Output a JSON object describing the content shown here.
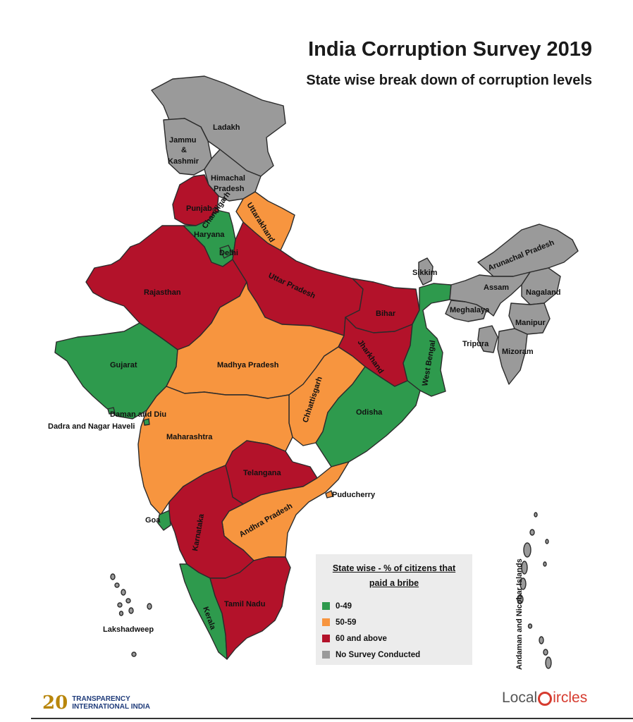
{
  "title": "India Corruption Survey 2019",
  "subtitle": "State wise break down of corruption levels",
  "colors": {
    "low": "#2e9a4d",
    "medium": "#f7953f",
    "high": "#b3122a",
    "none": "#9a9a9a"
  },
  "legend": {
    "title_line1": "State wise - % of citizens that",
    "title_line2": "paid a bribe",
    "items": [
      {
        "label": "0-49",
        "category": "low"
      },
      {
        "label": "50-59",
        "category": "medium"
      },
      {
        "label": "60 and above",
        "category": "high"
      },
      {
        "label": "No Survey Conducted",
        "category": "none"
      }
    ]
  },
  "regions": {
    "ladakh": {
      "name": "Ladakh",
      "category": "none"
    },
    "jammu_kashmir": {
      "name_lines": [
        "Jammu",
        "&",
        "Kashmir"
      ],
      "category": "none"
    },
    "himachal": {
      "name_lines": [
        "Himachal",
        "Pradesh"
      ],
      "category": "none"
    },
    "punjab": {
      "name": "Punjab",
      "category": "high"
    },
    "chandigarh": {
      "name": "Chandigarh",
      "category": "high"
    },
    "uttarakhand": {
      "name": "Uttarakhand",
      "category": "medium"
    },
    "haryana": {
      "name": "Haryana",
      "category": "low"
    },
    "delhi": {
      "name": "Delhi",
      "category": "low"
    },
    "rajasthan": {
      "name": "Rajasthan",
      "category": "high"
    },
    "uttar_pradesh": {
      "name": "Uttar Pradesh",
      "category": "high"
    },
    "bihar": {
      "name": "Bihar",
      "category": "high"
    },
    "sikkim": {
      "name": "Sikkim",
      "category": "none"
    },
    "arunachal": {
      "name": "Arunachal Pradesh",
      "category": "none"
    },
    "assam": {
      "name": "Assam",
      "category": "none"
    },
    "nagaland": {
      "name": "Nagaland",
      "category": "none"
    },
    "meghalaya": {
      "name": "Meghalaya",
      "category": "none"
    },
    "manipur": {
      "name": "Manipur",
      "category": "none"
    },
    "tripura": {
      "name": "Tripura",
      "category": "none"
    },
    "mizoram": {
      "name": "Mizoram",
      "category": "none"
    },
    "gujarat": {
      "name": "Gujarat",
      "category": "low"
    },
    "madhya_pradesh": {
      "name": "Madhya Pradesh",
      "category": "medium"
    },
    "jharkhand": {
      "name": "Jharkhand",
      "category": "high"
    },
    "west_bengal": {
      "name": "West Bengal",
      "category": "low"
    },
    "chhattisgarh": {
      "name": "Chhattisgarh",
      "category": "medium"
    },
    "odisha": {
      "name": "Odisha",
      "category": "low"
    },
    "daman_diu": {
      "name": "Daman and Diu",
      "category": "low"
    },
    "dadra_nagar_haveli": {
      "name": "Dadra and Nagar Haveli",
      "category": "low"
    },
    "maharashtra": {
      "name": "Maharashtra",
      "category": "medium"
    },
    "telangana": {
      "name": "Telangana",
      "category": "high"
    },
    "puducherry": {
      "name": "Puducherry",
      "category": "medium"
    },
    "goa": {
      "name": "Goa",
      "category": "low"
    },
    "karnataka": {
      "name": "Karnataka",
      "category": "high"
    },
    "andhra_pradesh": {
      "name": "Andhra Pradesh",
      "category": "medium"
    },
    "tamil_nadu": {
      "name": "Tamil Nadu",
      "category": "high"
    },
    "kerala": {
      "name": "Kerala",
      "category": "low"
    },
    "lakshadweep": {
      "name": "Lakshadweep",
      "category": "none"
    },
    "andaman_nicobar": {
      "name": "Andaman and Nicobar Islands",
      "category": "none"
    }
  },
  "logos": {
    "left_number": "20",
    "left_line1": "TRANSPARENCY",
    "left_line2": "INTERNATIONAL INDIA",
    "right_pre": "Local",
    "right_post": "ircles"
  }
}
